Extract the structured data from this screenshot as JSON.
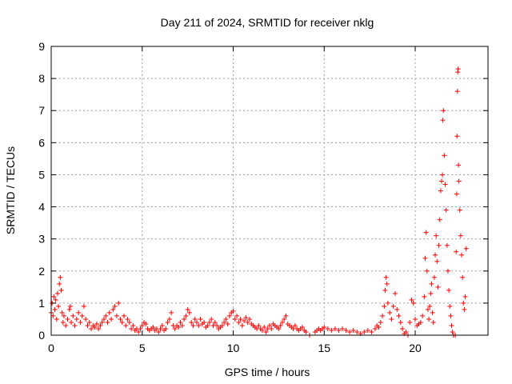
{
  "chart_data": {
    "type": "scatter",
    "title": "Day 211 of 2024, SRMTID for receiver nklg",
    "xlabel": "GPS time / hours",
    "ylabel": "SRMTID / TECUs",
    "xlim": [
      0,
      24
    ],
    "ylim": [
      0,
      9
    ],
    "xticks": [
      0,
      5,
      10,
      15,
      20
    ],
    "yticks": [
      0,
      1,
      2,
      3,
      4,
      5,
      6,
      7,
      8,
      9
    ],
    "grid": true,
    "marker": "+",
    "colors": {
      "series": "#ff0000",
      "grid": "#a0a0a0",
      "axis": "#000000"
    },
    "series": [
      {
        "name": "SRMTID",
        "points": [
          [
            0.0,
            0.7
          ],
          [
            0.05,
            1.0
          ],
          [
            0.1,
            0.6
          ],
          [
            0.15,
            1.2
          ],
          [
            0.2,
            0.8
          ],
          [
            0.25,
            1.1
          ],
          [
            0.3,
            0.5
          ],
          [
            0.35,
            1.3
          ],
          [
            0.4,
            0.9
          ],
          [
            0.45,
            1.6
          ],
          [
            0.5,
            1.8
          ],
          [
            0.55,
            1.4
          ],
          [
            0.6,
            0.7
          ],
          [
            0.65,
            0.4
          ],
          [
            0.7,
            0.6
          ],
          [
            0.8,
            0.3
          ],
          [
            0.9,
            0.5
          ],
          [
            1.0,
            0.8
          ],
          [
            1.05,
            0.9
          ],
          [
            1.1,
            0.4
          ],
          [
            1.2,
            0.6
          ],
          [
            1.3,
            0.3
          ],
          [
            1.4,
            0.5
          ],
          [
            1.5,
            0.7
          ],
          [
            1.6,
            0.4
          ],
          [
            1.7,
            0.6
          ],
          [
            1.8,
            0.9
          ],
          [
            1.9,
            0.5
          ],
          [
            2.0,
            0.3
          ],
          [
            2.1,
            0.4
          ],
          [
            2.2,
            0.2
          ],
          [
            2.3,
            0.3
          ],
          [
            2.4,
            0.25
          ],
          [
            2.5,
            0.35
          ],
          [
            2.6,
            0.2
          ],
          [
            2.7,
            0.3
          ],
          [
            2.8,
            0.4
          ],
          [
            2.9,
            0.5
          ],
          [
            3.0,
            0.6
          ],
          [
            3.1,
            0.4
          ],
          [
            3.2,
            0.7
          ],
          [
            3.3,
            0.5
          ],
          [
            3.4,
            0.8
          ],
          [
            3.5,
            0.9
          ],
          [
            3.6,
            0.6
          ],
          [
            3.7,
            1.0
          ],
          [
            3.8,
            0.5
          ],
          [
            3.9,
            0.4
          ],
          [
            4.0,
            0.6
          ],
          [
            4.1,
            0.3
          ],
          [
            4.2,
            0.5
          ],
          [
            4.3,
            0.4
          ],
          [
            4.4,
            0.2
          ],
          [
            4.5,
            0.3
          ],
          [
            4.6,
            0.15
          ],
          [
            4.7,
            0.2
          ],
          [
            4.8,
            0.1
          ],
          [
            4.9,
            0.2
          ],
          [
            5.0,
            0.3
          ],
          [
            5.1,
            0.4
          ],
          [
            5.2,
            0.35
          ],
          [
            5.3,
            0.2
          ],
          [
            5.4,
            0.15
          ],
          [
            5.5,
            0.2
          ],
          [
            5.6,
            0.25
          ],
          [
            5.7,
            0.15
          ],
          [
            5.8,
            0.2
          ],
          [
            5.9,
            0.1
          ],
          [
            6.0,
            0.2
          ],
          [
            6.1,
            0.3
          ],
          [
            6.2,
            0.15
          ],
          [
            6.3,
            0.2
          ],
          [
            6.4,
            0.4
          ],
          [
            6.5,
            0.5
          ],
          [
            6.6,
            0.7
          ],
          [
            6.7,
            0.3
          ],
          [
            6.8,
            0.2
          ],
          [
            6.9,
            0.3
          ],
          [
            7.0,
            0.25
          ],
          [
            7.1,
            0.4
          ],
          [
            7.2,
            0.3
          ],
          [
            7.3,
            0.5
          ],
          [
            7.4,
            0.6
          ],
          [
            7.5,
            0.8
          ],
          [
            7.6,
            0.7
          ],
          [
            7.7,
            0.4
          ],
          [
            7.8,
            0.3
          ],
          [
            7.9,
            0.5
          ],
          [
            8.0,
            0.4
          ],
          [
            8.1,
            0.3
          ],
          [
            8.2,
            0.5
          ],
          [
            8.3,
            0.35
          ],
          [
            8.4,
            0.4
          ],
          [
            8.5,
            0.25
          ],
          [
            8.6,
            0.3
          ],
          [
            8.7,
            0.4
          ],
          [
            8.8,
            0.5
          ],
          [
            8.9,
            0.3
          ],
          [
            9.0,
            0.4
          ],
          [
            9.1,
            0.3
          ],
          [
            9.2,
            0.2
          ],
          [
            9.3,
            0.25
          ],
          [
            9.4,
            0.3
          ],
          [
            9.5,
            0.4
          ],
          [
            9.6,
            0.5
          ],
          [
            9.7,
            0.35
          ],
          [
            9.8,
            0.6
          ],
          [
            9.9,
            0.7
          ],
          [
            10.0,
            0.75
          ],
          [
            10.1,
            0.5
          ],
          [
            10.2,
            0.6
          ],
          [
            10.3,
            0.4
          ],
          [
            10.4,
            0.5
          ],
          [
            10.5,
            0.3
          ],
          [
            10.6,
            0.45
          ],
          [
            10.7,
            0.55
          ],
          [
            10.8,
            0.4
          ],
          [
            10.9,
            0.5
          ],
          [
            11.0,
            0.35
          ],
          [
            11.1,
            0.3
          ],
          [
            11.2,
            0.25
          ],
          [
            11.3,
            0.2
          ],
          [
            11.4,
            0.3
          ],
          [
            11.5,
            0.2
          ],
          [
            11.6,
            0.15
          ],
          [
            11.7,
            0.25
          ],
          [
            11.8,
            0.1
          ],
          [
            11.9,
            0.2
          ],
          [
            12.0,
            0.3
          ],
          [
            12.1,
            0.2
          ],
          [
            12.2,
            0.35
          ],
          [
            12.3,
            0.3
          ],
          [
            12.4,
            0.25
          ],
          [
            12.5,
            0.2
          ],
          [
            12.6,
            0.3
          ],
          [
            12.7,
            0.4
          ],
          [
            12.8,
            0.5
          ],
          [
            12.9,
            0.6
          ],
          [
            13.0,
            0.35
          ],
          [
            13.1,
            0.3
          ],
          [
            13.2,
            0.25
          ],
          [
            13.3,
            0.2
          ],
          [
            13.4,
            0.3
          ],
          [
            13.5,
            0.2
          ],
          [
            13.6,
            0.15
          ],
          [
            13.7,
            0.2
          ],
          [
            13.8,
            0.25
          ],
          [
            13.9,
            0.15
          ],
          [
            14.0,
            0.1
          ],
          [
            14.2,
            0.0
          ],
          [
            14.5,
            0.1
          ],
          [
            14.6,
            0.15
          ],
          [
            14.7,
            0.2
          ],
          [
            14.8,
            0.15
          ],
          [
            14.9,
            0.2
          ],
          [
            15.0,
            0.25
          ],
          [
            15.2,
            0.2
          ],
          [
            15.4,
            0.15
          ],
          [
            15.6,
            0.2
          ],
          [
            15.8,
            0.15
          ],
          [
            16.0,
            0.2
          ],
          [
            16.2,
            0.15
          ],
          [
            16.4,
            0.1
          ],
          [
            16.6,
            0.15
          ],
          [
            16.8,
            0.1
          ],
          [
            17.0,
            0.05
          ],
          [
            17.2,
            0.1
          ],
          [
            17.4,
            0.15
          ],
          [
            17.6,
            0.1
          ],
          [
            17.8,
            0.2
          ],
          [
            17.9,
            0.3
          ],
          [
            18.0,
            0.25
          ],
          [
            18.1,
            0.4
          ],
          [
            18.2,
            0.6
          ],
          [
            18.3,
            0.9
          ],
          [
            18.35,
            1.4
          ],
          [
            18.4,
            1.8
          ],
          [
            18.45,
            1.6
          ],
          [
            18.5,
            1.0
          ],
          [
            18.6,
            0.7
          ],
          [
            18.7,
            0.5
          ],
          [
            18.8,
            0.9
          ],
          [
            18.9,
            1.3
          ],
          [
            19.0,
            0.8
          ],
          [
            19.1,
            0.6
          ],
          [
            19.2,
            0.4
          ],
          [
            19.3,
            0.2
          ],
          [
            19.4,
            0.05
          ],
          [
            19.5,
            0.1
          ],
          [
            19.6,
            0.0
          ],
          [
            19.7,
            0.4
          ],
          [
            19.8,
            1.1
          ],
          [
            19.9,
            1.0
          ],
          [
            20.0,
            0.5
          ],
          [
            20.1,
            0.3
          ],
          [
            20.2,
            0.35
          ],
          [
            20.3,
            0.4
          ],
          [
            20.4,
            0.6
          ],
          [
            20.5,
            1.2
          ],
          [
            20.55,
            2.4
          ],
          [
            20.6,
            3.2
          ],
          [
            20.65,
            2.0
          ],
          [
            20.7,
            0.8
          ],
          [
            20.75,
            0.5
          ],
          [
            20.8,
            0.9
          ],
          [
            20.85,
            1.3
          ],
          [
            20.9,
            1.6
          ],
          [
            20.95,
            0.7
          ],
          [
            21.0,
            0.4
          ],
          [
            21.05,
            1.8
          ],
          [
            21.1,
            2.5
          ],
          [
            21.15,
            3.1
          ],
          [
            21.2,
            2.3
          ],
          [
            21.25,
            1.5
          ],
          [
            21.3,
            2.8
          ],
          [
            21.35,
            3.6
          ],
          [
            21.4,
            4.5
          ],
          [
            21.45,
            4.8
          ],
          [
            21.5,
            5.0
          ],
          [
            21.52,
            6.7
          ],
          [
            21.55,
            7.0
          ],
          [
            21.6,
            5.6
          ],
          [
            21.65,
            4.7
          ],
          [
            21.7,
            3.9
          ],
          [
            21.75,
            2.8
          ],
          [
            21.8,
            2.0
          ],
          [
            21.85,
            1.4
          ],
          [
            21.9,
            0.9
          ],
          [
            21.95,
            0.6
          ],
          [
            22.0,
            0.3
          ],
          [
            22.05,
            0.1
          ],
          [
            22.1,
            0.0
          ],
          [
            22.2,
            0.0
          ],
          [
            22.25,
            2.6
          ],
          [
            22.28,
            4.4
          ],
          [
            22.3,
            6.2
          ],
          [
            22.32,
            7.6
          ],
          [
            22.34,
            8.2
          ],
          [
            22.36,
            8.3
          ],
          [
            22.38,
            5.3
          ],
          [
            22.4,
            4.8
          ],
          [
            22.45,
            3.9
          ],
          [
            22.5,
            3.1
          ],
          [
            22.55,
            2.5
          ],
          [
            22.6,
            1.8
          ],
          [
            22.65,
            1.0
          ],
          [
            22.7,
            0.8
          ],
          [
            22.75,
            1.2
          ],
          [
            22.8,
            2.7
          ]
        ]
      }
    ]
  }
}
